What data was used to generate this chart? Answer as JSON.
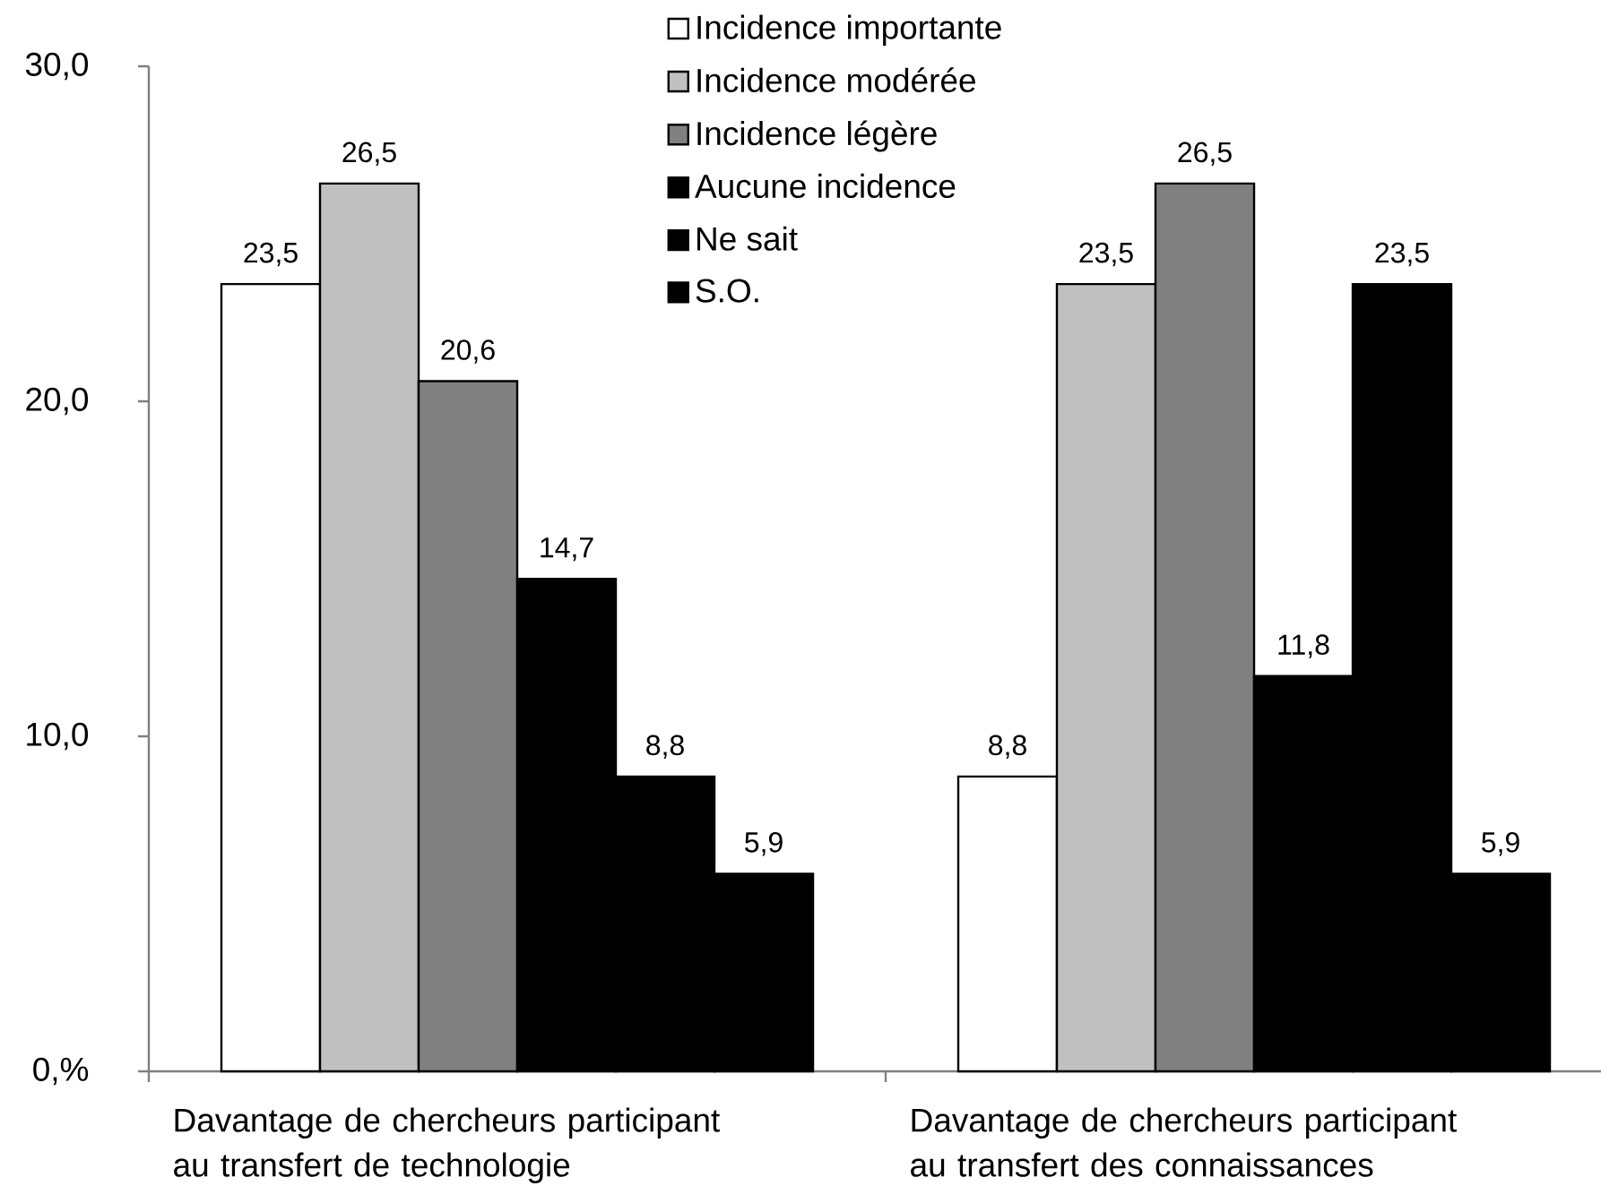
{
  "chart_data": {
    "type": "bar",
    "categories": [
      "Davantage de chercheurs participant au transfert de technologie",
      "Davantage de chercheurs participant au transfert des connaissances"
    ],
    "series": [
      {
        "name": "Incidence importante",
        "color": "#ffffff",
        "values": [
          23.5,
          8.8
        ],
        "value_labels": [
          "23,5",
          "8,8"
        ]
      },
      {
        "name": "Incidence modérée",
        "color": "#c0c0c0",
        "values": [
          26.5,
          23.5
        ],
        "value_labels": [
          "26,5",
          "23,5"
        ]
      },
      {
        "name": "Incidence légère",
        "color": "#808080",
        "values": [
          20.6,
          26.5
        ],
        "value_labels": [
          "20,6",
          "26,5"
        ]
      },
      {
        "name": "Aucune incidence",
        "color": "#000000",
        "values": [
          14.7,
          11.8
        ],
        "value_labels": [
          "14,7",
          "11,8"
        ]
      },
      {
        "name": "Ne sait",
        "color": "#000000",
        "values": [
          8.8,
          23.5
        ],
        "value_labels": [
          "8,8",
          "23,5"
        ]
      },
      {
        "name": "S.O.",
        "color": "#000000",
        "values": [
          5.9,
          5.9
        ],
        "value_labels": [
          "5,9",
          "5,9"
        ]
      }
    ],
    "ylim": [
      0,
      30
    ],
    "yticks": [
      {
        "value": 0,
        "label": "0,%"
      },
      {
        "value": 10,
        "label": "10,0"
      },
      {
        "value": 20,
        "label": "20,0"
      },
      {
        "value": 30,
        "label": "30,0"
      }
    ],
    "legend": "top"
  }
}
